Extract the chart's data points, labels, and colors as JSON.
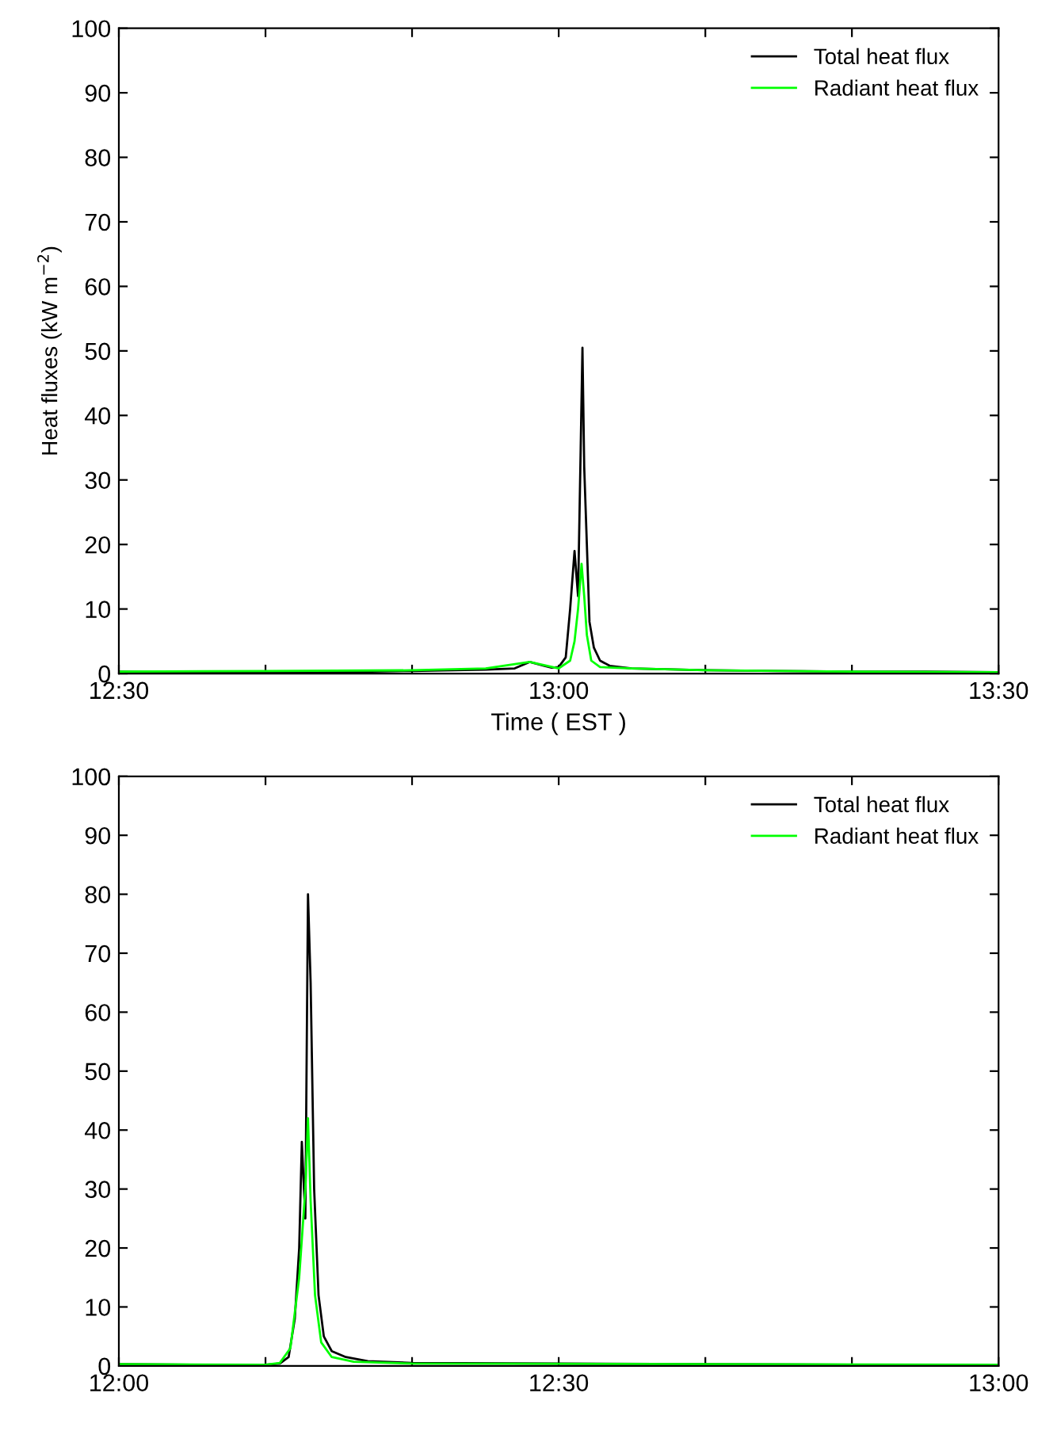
{
  "chart_data": [
    {
      "type": "line",
      "ylabel": "Heat fluxes (kW m$^{−2}$)",
      "xlabel": "Time ( EST )",
      "legend": "top right",
      "grid": false,
      "xlim": [
        12.5,
        13.5
      ],
      "xticks": [
        {
          "value": 12.5,
          "label": "12:30"
        },
        {
          "value": 12.6667,
          "label": null
        },
        {
          "value": 12.8333,
          "label": null
        },
        {
          "value": 13.0,
          "label": "13:00"
        },
        {
          "value": 13.1667,
          "label": null
        },
        {
          "value": 13.3333,
          "label": null
        },
        {
          "value": 13.5,
          "label": "13:30"
        }
      ],
      "ylim": [
        0,
        100
      ],
      "yticks": [
        0,
        10,
        20,
        30,
        40,
        50,
        60,
        70,
        80,
        90,
        100
      ],
      "series": [
        {
          "name": "Total heat flux",
          "color": "#000000",
          "x": [
            12.5,
            12.583,
            12.667,
            12.75,
            12.833,
            12.917,
            12.95,
            12.967,
            12.983,
            12.992,
            13.0,
            13.008,
            13.013,
            13.018,
            13.022,
            13.025,
            13.027,
            13.029,
            13.032,
            13.035,
            13.04,
            13.047,
            13.058,
            13.083,
            13.167,
            13.25,
            13.333,
            13.417,
            13.5
          ],
          "values": [
            0.3,
            0.2,
            0.3,
            0.2,
            0.4,
            0.6,
            0.8,
            1.8,
            1.2,
            0.9,
            1.0,
            2.5,
            10,
            19,
            12,
            35,
            50.5,
            32,
            20,
            8,
            4,
            2,
            1.2,
            0.8,
            0.5,
            0.4,
            0.3,
            0.3,
            0.2
          ]
        },
        {
          "name": "Radiant heat flux",
          "color": "#00ff00",
          "x": [
            12.5,
            12.667,
            12.833,
            12.917,
            12.967,
            12.983,
            13.0,
            13.013,
            13.018,
            13.022,
            13.026,
            13.029,
            13.032,
            13.037,
            13.047,
            13.083,
            13.167,
            13.333,
            13.5
          ],
          "values": [
            0.3,
            0.4,
            0.5,
            0.8,
            1.8,
            1.3,
            0.8,
            2,
            5,
            10,
            17,
            12,
            6,
            2,
            1,
            0.8,
            0.5,
            0.3,
            0.2
          ]
        }
      ]
    },
    {
      "type": "line",
      "legend": "top right",
      "grid": false,
      "xlim": [
        12.0,
        13.0
      ],
      "xticks": [
        {
          "value": 12.0,
          "label": "12:00"
        },
        {
          "value": 12.1667,
          "label": null
        },
        {
          "value": 12.3333,
          "label": null
        },
        {
          "value": 12.5,
          "label": "12:30"
        },
        {
          "value": 12.6667,
          "label": null
        },
        {
          "value": 12.8333,
          "label": null
        },
        {
          "value": 13.0,
          "label": "13:00"
        }
      ],
      "ylim": [
        0,
        100
      ],
      "yticks": [
        0,
        10,
        20,
        30,
        40,
        50,
        60,
        70,
        80,
        90,
        100
      ],
      "series": [
        {
          "name": "Total heat flux",
          "color": "#000000",
          "x": [
            12.0,
            12.083,
            12.167,
            12.183,
            12.193,
            12.2,
            12.205,
            12.208,
            12.212,
            12.215,
            12.218,
            12.222,
            12.227,
            12.233,
            12.242,
            12.258,
            12.283,
            12.333,
            12.5,
            12.667,
            12.833,
            13.0
          ],
          "values": [
            0.3,
            0.2,
            0.2,
            0.4,
            1.5,
            8,
            20,
            38,
            25,
            80,
            65,
            30,
            12,
            5,
            2.5,
            1.5,
            0.8,
            0.5,
            0.4,
            0.3,
            0.2,
            0.2
          ]
        },
        {
          "name": "Radiant heat flux",
          "color": "#00ff00",
          "x": [
            12.0,
            12.167,
            12.183,
            12.195,
            12.205,
            12.212,
            12.215,
            12.218,
            12.223,
            12.23,
            12.242,
            12.267,
            12.333,
            12.667,
            13.0
          ],
          "values": [
            0.3,
            0.2,
            0.5,
            3,
            15,
            30,
            42,
            28,
            12,
            4,
            1.5,
            0.7,
            0.4,
            0.3,
            0.2
          ]
        }
      ]
    }
  ]
}
